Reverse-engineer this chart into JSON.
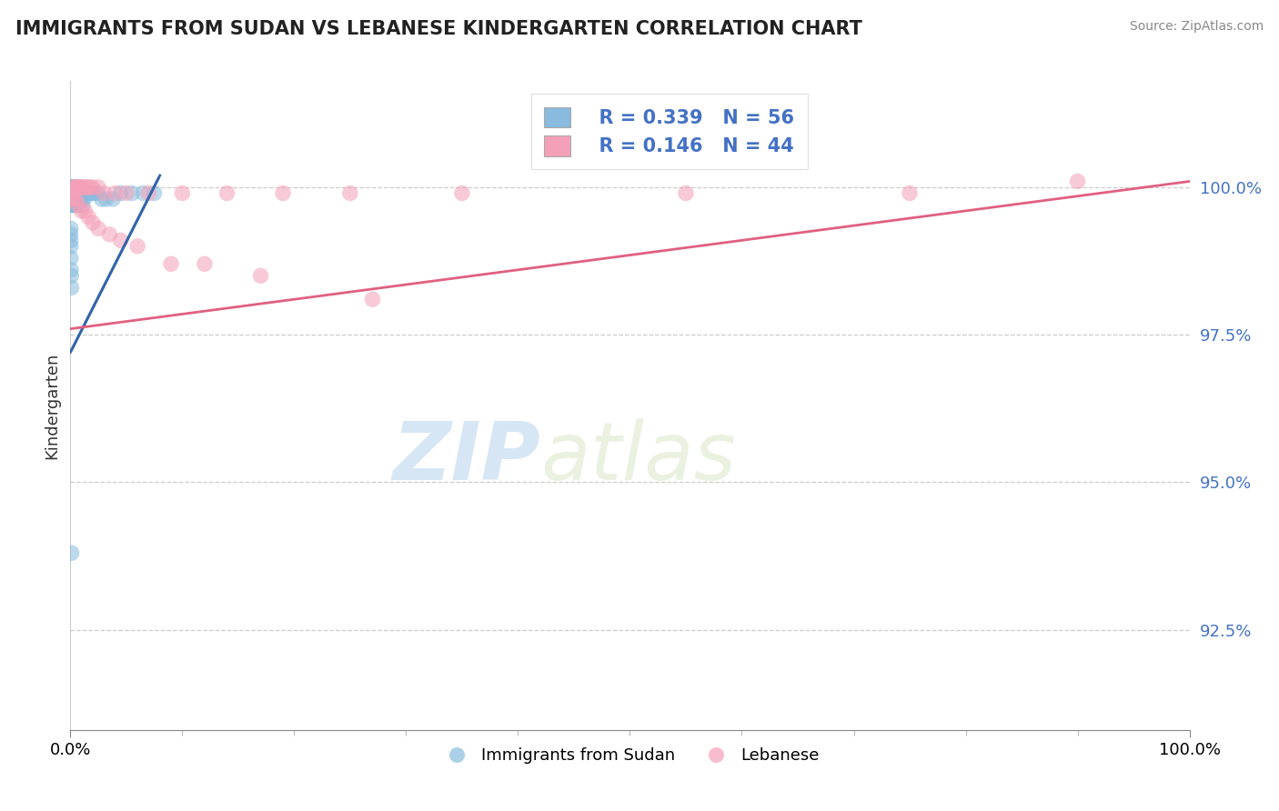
{
  "title": "IMMIGRANTS FROM SUDAN VS LEBANESE KINDERGARTEN CORRELATION CHART",
  "source": "Source: ZipAtlas.com",
  "xlabel_blue": "Immigrants from Sudan",
  "xlabel_pink": "Lebanese",
  "ylabel": "Kindergarten",
  "watermark_zip": "ZIP",
  "watermark_atlas": "atlas",
  "x_min": 0.0,
  "x_max": 1.0,
  "y_min": 0.908,
  "y_max": 1.018,
  "y_ticks": [
    0.925,
    0.95,
    0.975,
    1.0
  ],
  "y_tick_labels": [
    "92.5%",
    "95.0%",
    "97.5%",
    "100.0%"
  ],
  "x_tick_labels": [
    "0.0%",
    "100.0%"
  ],
  "blue_R": 0.339,
  "blue_N": 56,
  "pink_R": 0.146,
  "pink_N": 44,
  "blue_color": "#88bbdd",
  "pink_color": "#f4a0b8",
  "blue_line_color": "#3366aa",
  "pink_line_color": "#e06080",
  "blue_line_x0": 0.0,
  "blue_line_y0": 0.972,
  "blue_line_x1": 0.08,
  "blue_line_y1": 1.002,
  "pink_line_x0": 0.0,
  "pink_line_y0": 0.976,
  "pink_line_x1": 1.0,
  "pink_line_y1": 1.001,
  "blue_scatter_x": [
    0.0005,
    0.0005,
    0.0005,
    0.0005,
    0.0005,
    0.0008,
    0.0008,
    0.001,
    0.001,
    0.001,
    0.001,
    0.001,
    0.001,
    0.001,
    0.001,
    0.001,
    0.002,
    0.002,
    0.002,
    0.003,
    0.003,
    0.003,
    0.004,
    0.004,
    0.005,
    0.005,
    0.006,
    0.007,
    0.008,
    0.009,
    0.01,
    0.011,
    0.012,
    0.013,
    0.014,
    0.016,
    0.017,
    0.019,
    0.021,
    0.024,
    0.028,
    0.032,
    0.038,
    0.045,
    0.055,
    0.065,
    0.075,
    0.0003,
    0.0003,
    0.0003,
    0.0004,
    0.0004,
    0.0006,
    0.0007,
    0.0009,
    0.001
  ],
  "blue_scatter_y": [
    0.999,
    0.999,
    0.999,
    1.0,
    1.0,
    0.999,
    1.0,
    0.997,
    0.997,
    0.998,
    0.998,
    0.999,
    0.999,
    1.0,
    1.0,
    1.0,
    0.997,
    0.998,
    1.0,
    0.997,
    0.998,
    0.999,
    0.997,
    0.999,
    0.997,
    0.999,
    0.998,
    0.997,
    0.998,
    0.998,
    0.998,
    0.997,
    0.998,
    0.999,
    0.999,
    0.999,
    0.999,
    0.999,
    0.999,
    0.999,
    0.998,
    0.998,
    0.998,
    0.999,
    0.999,
    0.999,
    0.999,
    0.993,
    0.992,
    0.991,
    0.99,
    0.988,
    0.986,
    0.985,
    0.983,
    0.938
  ],
  "pink_scatter_x": [
    0.001,
    0.002,
    0.003,
    0.004,
    0.005,
    0.006,
    0.007,
    0.008,
    0.009,
    0.01,
    0.012,
    0.014,
    0.016,
    0.018,
    0.02,
    0.025,
    0.03,
    0.04,
    0.05,
    0.07,
    0.1,
    0.14,
    0.19,
    0.25,
    0.35,
    0.55,
    0.75,
    0.002,
    0.003,
    0.005,
    0.007,
    0.01,
    0.013,
    0.016,
    0.02,
    0.025,
    0.035,
    0.045,
    0.06,
    0.09,
    0.12,
    0.17,
    0.27,
    0.9
  ],
  "pink_scatter_y": [
    0.999,
    0.999,
    1.0,
    1.0,
    1.0,
    1.0,
    1.0,
    1.0,
    1.0,
    1.0,
    1.0,
    1.0,
    1.0,
    1.0,
    1.0,
    1.0,
    0.999,
    0.999,
    0.999,
    0.999,
    0.999,
    0.999,
    0.999,
    0.999,
    0.999,
    0.999,
    0.999,
    0.998,
    0.998,
    0.998,
    0.997,
    0.996,
    0.996,
    0.995,
    0.994,
    0.993,
    0.992,
    0.991,
    0.99,
    0.987,
    0.987,
    0.985,
    0.981,
    1.001
  ]
}
